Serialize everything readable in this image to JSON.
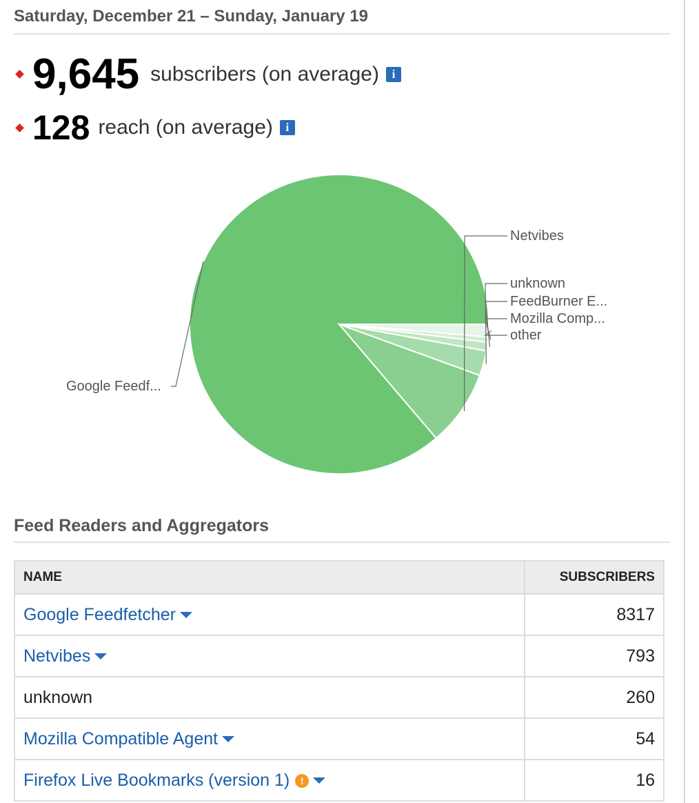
{
  "header": {
    "date_range": "Saturday, December 21 – Sunday, January 19"
  },
  "metrics": [
    {
      "value": "9,645",
      "label": "subscribers (on average)"
    },
    {
      "value": "128",
      "label": "reach (on average)"
    }
  ],
  "icons": {
    "bullet": "red-diamond-icon",
    "info": "info-icon",
    "dropdown": "chevron-down-icon",
    "warning": "warning-icon"
  },
  "colors": {
    "accent": "#2a6bbd",
    "bullet": "#e2231a",
    "pie_main": "#6cc573",
    "link": "#1a5fa8"
  },
  "chart_data": {
    "type": "pie",
    "slices": [
      {
        "label": "Google Feedf...",
        "value": 8317,
        "color": "#6cc573"
      },
      {
        "label": "Netvibes",
        "value": 793,
        "color": "#89cf8f"
      },
      {
        "label": "unknown",
        "value": 260,
        "color": "#a6dbab"
      },
      {
        "label": "FeedBurner E...",
        "value": 90,
        "color": "#c0e6c3"
      },
      {
        "label": "Mozilla Comp...",
        "value": 54,
        "color": "#d3edd5"
      },
      {
        "label": "other",
        "value": 131,
        "color": "#e6f5e7"
      }
    ]
  },
  "section": {
    "title": "Feed Readers and Aggregators"
  },
  "table": {
    "headers": {
      "name": "NAME",
      "subscribers": "SUBSCRIBERS"
    },
    "rows": [
      {
        "name": "Google Feedfetcher",
        "subscribers": "8317"
      },
      {
        "name": "Netvibes",
        "subscribers": "793"
      },
      {
        "name": "unknown",
        "subscribers": "260"
      },
      {
        "name": "Mozilla Compatible Agent",
        "subscribers": "54"
      },
      {
        "name": "Firefox Live Bookmarks (version 1)",
        "subscribers": "16"
      }
    ]
  }
}
